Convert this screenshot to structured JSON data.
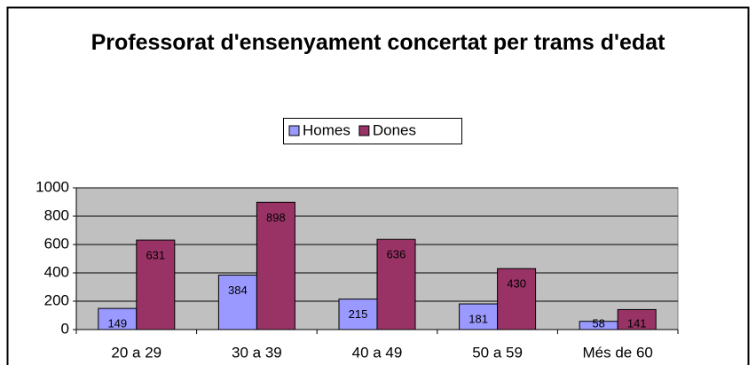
{
  "chart_data": {
    "type": "bar",
    "title": "Professorat d'ensenyament concertat per trams d'edat",
    "categories": [
      "20 a 29",
      "30 a 39",
      "40 a 49",
      "50 a 59",
      "Més de 60"
    ],
    "series": [
      {
        "name": "Homes",
        "color": "#9999ff",
        "values": [
          149,
          384,
          215,
          181,
          58
        ]
      },
      {
        "name": "Dones",
        "color": "#993366",
        "values": [
          631,
          898,
          636,
          430,
          141
        ]
      }
    ],
    "ylim": [
      0,
      1000
    ],
    "yticks": [
      0,
      200,
      400,
      600,
      800,
      1000
    ],
    "grid": true,
    "legend": "top"
  }
}
